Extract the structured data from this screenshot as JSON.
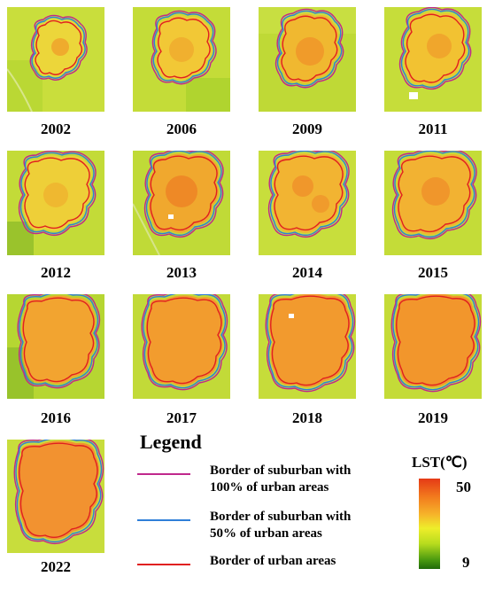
{
  "maps": [
    {
      "year": "2002"
    },
    {
      "year": "2006"
    },
    {
      "year": "2009"
    },
    {
      "year": "2011"
    },
    {
      "year": "2012"
    },
    {
      "year": "2013"
    },
    {
      "year": "2014"
    },
    {
      "year": "2015"
    },
    {
      "year": "2016"
    },
    {
      "year": "2017"
    },
    {
      "year": "2018"
    },
    {
      "year": "2019"
    },
    {
      "year": "2022"
    }
  ],
  "legend": {
    "title": "Legend",
    "items": [
      {
        "label": "Border of suburban with\n100% of urban areas",
        "color": "#c0288c"
      },
      {
        "label": "Border of suburban with\n50% of urban areas",
        "color": "#2f7fd8"
      },
      {
        "label": "Border of urban areas",
        "color": "#e02020"
      }
    ]
  },
  "colorbar": {
    "title": "LST(℃)",
    "max": "50",
    "min": "9"
  }
}
